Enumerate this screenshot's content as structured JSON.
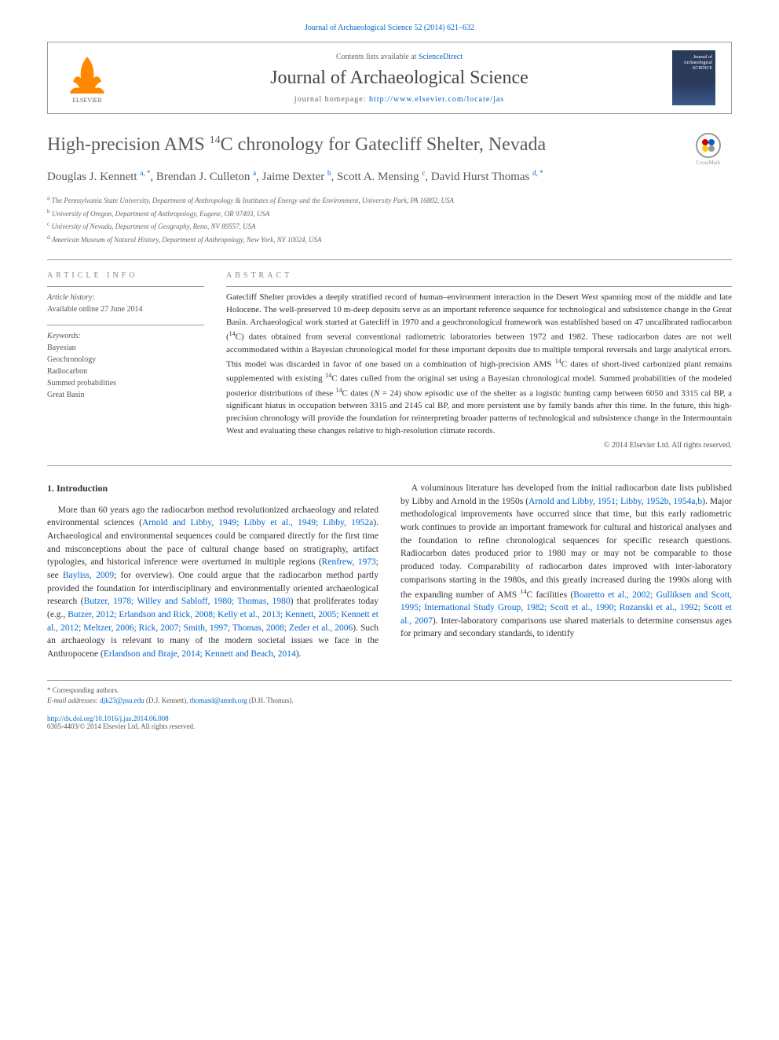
{
  "citation": "Journal of Archaeological Science 52 (2014) 621–632",
  "header": {
    "contents_prefix": "Contents lists available at ",
    "contents_link": "ScienceDirect",
    "journal_name": "Journal of Archaeological Science",
    "homepage_prefix": "journal homepage: ",
    "homepage_url": "http://www.elsevier.com/locate/jas",
    "publisher": "ELSEVIER",
    "cover_line1": "Journal of",
    "cover_line2": "Archaeological",
    "cover_line3": "SCIENCE"
  },
  "crossmark_label": "CrossMark",
  "article": {
    "title_pre": "High-precision AMS ",
    "title_sup": "14",
    "title_post": "C chronology for Gatecliff Shelter, Nevada",
    "authors_html": "Douglas J. Kennett <sup>a, *</sup>, Brendan J. Culleton <sup>a</sup>, Jaime Dexter <sup>b</sup>, Scott A. Mensing <sup>c</sup>, David Hurst Thomas <sup>d, *</sup>",
    "affiliations": [
      "a The Pennsylvania State University, Department of Anthropology & Institutes of Energy and the Environment, University Park, PA 16802, USA",
      "b University of Oregon, Department of Anthropology, Eugene, OR 97403, USA",
      "c University of Nevada, Department of Geography, Reno, NV 89557, USA",
      "d American Museum of Natural History, Department of Anthropology, New York, NY 10024, USA"
    ]
  },
  "info": {
    "heading": "ARTICLE INFO",
    "history_label": "Article history:",
    "history_value": "Available online 27 June 2014",
    "keywords_label": "Keywords:",
    "keywords": [
      "Bayesian",
      "Geochronology",
      "Radiocarbon",
      "Summed probabilities",
      "Great Basin"
    ]
  },
  "abstract": {
    "heading": "ABSTRACT",
    "text": "Gatecliff Shelter provides a deeply stratified record of human–environment interaction in the Desert West spanning most of the middle and late Holocene. The well-preserved 10 m-deep deposits serve as an important reference sequence for technological and subsistence change in the Great Basin. Archaeological work started at Gatecliff in 1970 and a geochronological framework was established based on 47 uncalibrated radiocarbon (14C) dates obtained from several conventional radiometric laboratories between 1972 and 1982. These radiocarbon dates are not well accommodated within a Bayesian chronological model for these important deposits due to multiple temporal reversals and large analytical errors. This model was discarded in favor of one based on a combination of high-precision AMS 14C dates of short-lived carbonized plant remains supplemented with existing 14C dates culled from the original set using a Bayesian chronological model. Summed probabilities of the modeled posterior distributions of these 14C dates (N = 24) show episodic use of the shelter as a logistic hunting camp between 6050 and 3315 cal BP, a significant hiatus in occupation between 3315 and 2145 cal BP, and more persistent use by family bands after this time. In the future, this high-precision chronology will provide the foundation for reinterpreting broader patterns of technological and subsistence change in the Intermountain West and evaluating these changes relative to high-resolution climate records.",
    "copyright": "© 2014 Elsevier Ltd. All rights reserved."
  },
  "body": {
    "section_title": "1. Introduction",
    "p1_a": "More than 60 years ago the radiocarbon method revolutionized archaeology and related environmental sciences (",
    "p1_link1": "Arnold and Libby, 1949; Libby et al., 1949; Libby, 1952a",
    "p1_b": "). Archaeological and environmental sequences could be compared directly for the first time and misconceptions about the pace of cultural change based on stratigraphy, artifact typologies, and historical inference were overturned in multiple regions (",
    "p1_link2": "Renfrew, 1973",
    "p1_c": "; see ",
    "p1_link3": "Bayliss, 2009",
    "p1_d": "; for overview). One could argue that the radiocarbon method partly provided the foundation for interdisciplinary and environmentally oriented archaeological research (",
    "p1_link4": "Butzer, 1978; Willey and Sabloff, 1980; Thomas, 1980",
    "p1_e": ") that proliferates today (e.g., ",
    "p1_link5": "Butzer, 2012; Erlandson and Rick, 2008; Kelly et al., 2013; Kennett, 2005; Kennett et al., 2012; Meltzer, 2006; Rick, 2007; Smith, 1997;",
    "p1_link6": "Thomas, 2008; Zeder et al., 2006",
    "p1_f": "). Such an archaeology is relevant to many of the modern societal issues we face in the Anthropocene (",
    "p1_link7": "Erlandson and Braje, 2014; Kennett and Beach, 2014",
    "p1_g": ").",
    "p2_a": "A voluminous literature has developed from the initial radiocarbon date lists published by Libby and Arnold in the 1950s (",
    "p2_link1": "Arnold and Libby, 1951; Libby, 1952b, 1954a,b",
    "p2_b": "). Major methodological improvements have occurred since that time, but this early radiometric work continues to provide an important framework for cultural and historical analyses and the foundation to refine chronological sequences for specific research questions. Radiocarbon dates produced prior to 1980 may or may not be comparable to those produced today. Comparability of radiocarbon dates improved with inter-laboratory comparisons starting in the 1980s, and this greatly increased during the 1990s along with the expanding number of AMS ",
    "p2_sup": "14",
    "p2_c": "C facilities (",
    "p2_link2": "Boaretto et al., 2002; Gulliksen and Scott, 1995; International Study Group, 1982; Scott et al., 1990; Rozanski et al., 1992; Scott et al., 2007",
    "p2_d": "). Inter-laboratory comparisons use shared materials to determine consensus ages for primary and secondary standards, to identify"
  },
  "footer": {
    "corr_label": "* Corresponding authors.",
    "email_label": "E-mail addresses:",
    "email1": "djk23@psu.edu",
    "email1_person": "(D.J. Kennett),",
    "email2": "thomasd@amnh.org",
    "email2_person": "(D.H. Thomas).",
    "doi": "http://dx.doi.org/10.1016/j.jas.2014.06.008",
    "issn_copyright": "0305-4403/© 2014 Elsevier Ltd. All rights reserved."
  },
  "colors": {
    "link": "#0066cc",
    "text": "#333333",
    "heading": "#595959",
    "border": "#999999",
    "elsevier_orange": "#ff8800"
  }
}
